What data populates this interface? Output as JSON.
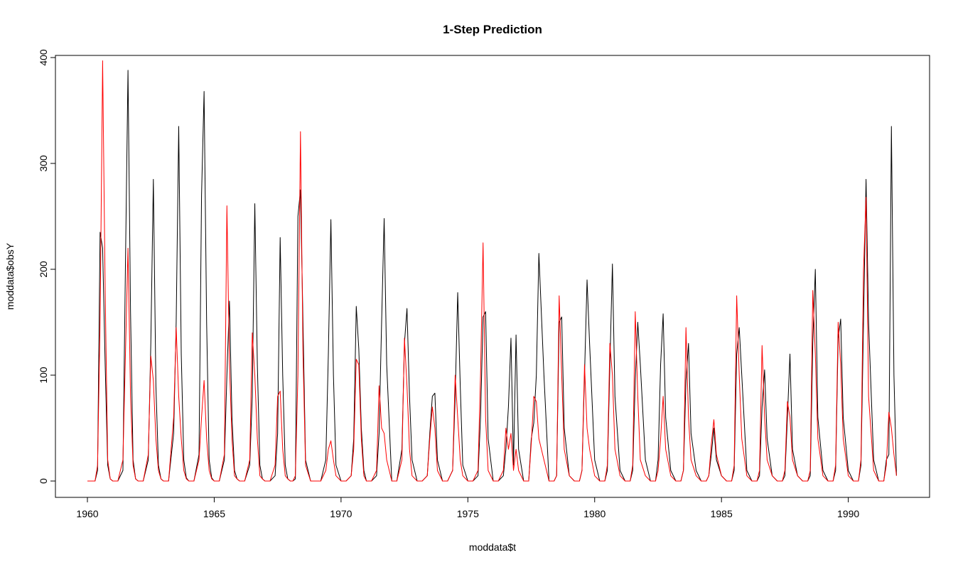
{
  "chart_data": {
    "type": "line",
    "title": "1-Step Prediction",
    "xlabel": "moddata$t",
    "ylabel": "moddata$obsY",
    "xlim": [
      1960,
      1992
    ],
    "ylim": [
      0,
      400
    ],
    "x_ticks": [
      1960,
      1965,
      1970,
      1975,
      1980,
      1985,
      1990
    ],
    "x_tick_labels": [
      "1960",
      "1965",
      "1970",
      "1975",
      "1980",
      "1985",
      "1990"
    ],
    "y_ticks": [
      0,
      100,
      200,
      300,
      400
    ],
    "y_tick_labels": [
      "0",
      "100",
      "200",
      "300",
      "400"
    ],
    "grid": false,
    "legend": "none",
    "colors": {
      "observed": "#000000",
      "predicted": "#ff0000"
    },
    "series": [
      {
        "x": [
          1960.0,
          1960.2,
          1960.3,
          1960.4,
          1960.5,
          1960.6,
          1960.7,
          1960.8,
          1960.9,
          1961.0,
          1961.2,
          1961.4,
          1961.5,
          1961.6,
          1961.7,
          1961.8,
          1961.9,
          1962.0,
          1962.2,
          1962.4,
          1962.5,
          1962.6,
          1962.7,
          1962.8,
          1962.9,
          1963.0,
          1963.2,
          1963.4,
          1963.5,
          1963.6,
          1963.7,
          1963.8,
          1963.9,
          1964.0,
          1964.2,
          1964.4,
          1964.5,
          1964.6,
          1964.7,
          1964.8,
          1964.9,
          1965.0,
          1965.2,
          1965.4,
          1965.5,
          1965.6,
          1965.7,
          1965.8,
          1965.9,
          1966.0,
          1966.2,
          1966.4,
          1966.5,
          1966.6,
          1966.7,
          1966.8,
          1966.9,
          1967.0,
          1967.2,
          1967.4,
          1967.5,
          1967.6,
          1967.7,
          1967.8,
          1967.9,
          1968.0,
          1968.1,
          1968.2,
          1968.3,
          1968.4,
          1968.5,
          1968.6,
          1968.8,
          1969.0,
          1969.2,
          1969.4,
          1969.5,
          1969.6,
          1969.7,
          1969.8,
          1970.0,
          1970.2,
          1970.4,
          1970.5,
          1970.6,
          1970.7,
          1970.8,
          1970.9,
          1971.0,
          1971.2,
          1971.4,
          1971.5,
          1971.6,
          1971.7,
          1971.8,
          1972.0,
          1972.2,
          1972.4,
          1972.5,
          1972.6,
          1972.7,
          1972.8,
          1973.0,
          1973.2,
          1973.4,
          1973.5,
          1973.6,
          1973.7,
          1973.8,
          1974.0,
          1974.2,
          1974.4,
          1974.5,
          1974.6,
          1974.7,
          1974.8,
          1975.0,
          1975.2,
          1975.4,
          1975.5,
          1975.6,
          1975.7,
          1975.8,
          1976.0,
          1976.2,
          1976.4,
          1976.5,
          1976.6,
          1976.7,
          1976.8,
          1976.9,
          1977.0,
          1977.2,
          1977.4,
          1977.5,
          1977.6,
          1977.7,
          1977.8,
          1978.0,
          1978.2,
          1978.4,
          1978.5,
          1978.6,
          1978.7,
          1978.8,
          1979.0,
          1979.2,
          1979.4,
          1979.5,
          1979.6,
          1979.7,
          1979.8,
          1980.0,
          1980.2,
          1980.4,
          1980.5,
          1980.6,
          1980.7,
          1980.8,
          1981.0,
          1981.2,
          1981.4,
          1981.5,
          1981.6,
          1981.7,
          1981.8,
          1982.0,
          1982.2,
          1982.4,
          1982.5,
          1982.6,
          1982.7,
          1982.8,
          1983.0,
          1983.2,
          1983.4,
          1983.5,
          1983.6,
          1983.7,
          1983.8,
          1984.0,
          1984.2,
          1984.4,
          1984.5,
          1984.6,
          1984.7,
          1984.8,
          1985.0,
          1985.2,
          1985.4,
          1985.5,
          1985.6,
          1985.7,
          1985.8,
          1986.0,
          1986.2,
          1986.4,
          1986.5,
          1986.6,
          1986.7,
          1986.8,
          1987.0,
          1987.2,
          1987.4,
          1987.5,
          1987.6,
          1987.7,
          1987.8,
          1988.0,
          1988.2,
          1988.4,
          1988.5,
          1988.6,
          1988.7,
          1988.8,
          1989.0,
          1989.2,
          1989.4,
          1989.5,
          1989.6,
          1989.7,
          1989.8,
          1990.0,
          1990.2,
          1990.4,
          1990.5,
          1990.6,
          1990.7,
          1990.8,
          1991.0,
          1991.2,
          1991.4,
          1991.5,
          1991.6,
          1991.7,
          1991.8,
          1991.9
        ],
        "y": [
          0,
          0,
          0,
          10,
          235,
          220,
          110,
          15,
          2,
          0,
          0,
          10,
          205,
          388,
          160,
          20,
          2,
          0,
          0,
          20,
          130,
          285,
          90,
          15,
          2,
          0,
          0,
          45,
          150,
          335,
          120,
          20,
          3,
          0,
          0,
          25,
          270,
          368,
          150,
          20,
          3,
          0,
          0,
          20,
          100,
          170,
          60,
          10,
          2,
          0,
          0,
          15,
          80,
          262,
          110,
          15,
          2,
          0,
          0,
          5,
          45,
          230,
          100,
          15,
          2,
          0,
          0,
          2,
          250,
          275,
          150,
          20,
          0,
          0,
          0,
          20,
          120,
          247,
          100,
          15,
          0,
          0,
          5,
          40,
          165,
          125,
          50,
          10,
          0,
          0,
          5,
          45,
          150,
          248,
          110,
          0,
          0,
          30,
          130,
          163,
          80,
          20,
          0,
          0,
          5,
          45,
          80,
          83,
          20,
          0,
          0,
          10,
          80,
          178,
          90,
          15,
          0,
          0,
          5,
          60,
          155,
          160,
          40,
          0,
          0,
          5,
          30,
          70,
          135,
          15,
          138,
          30,
          0,
          0,
          40,
          55,
          100,
          215,
          100,
          0,
          0,
          5,
          150,
          155,
          50,
          5,
          0,
          0,
          10,
          100,
          190,
          130,
          20,
          0,
          0,
          10,
          110,
          205,
          80,
          10,
          0,
          0,
          10,
          95,
          150,
          110,
          20,
          0,
          0,
          20,
          110,
          158,
          60,
          10,
          0,
          0,
          10,
          95,
          130,
          45,
          10,
          0,
          0,
          5,
          25,
          50,
          20,
          5,
          0,
          0,
          10,
          120,
          145,
          100,
          10,
          0,
          0,
          5,
          70,
          105,
          40,
          5,
          0,
          0,
          5,
          60,
          120,
          30,
          5,
          0,
          0,
          5,
          130,
          200,
          60,
          10,
          0,
          0,
          10,
          135,
          153,
          60,
          10,
          0,
          0,
          15,
          150,
          285,
          150,
          20,
          0,
          0,
          20,
          25,
          335,
          100,
          5
        ]
      },
      {
        "x": [
          1960.0,
          1960.2,
          1960.3,
          1960.4,
          1960.5,
          1960.6,
          1960.7,
          1960.8,
          1960.9,
          1961.0,
          1961.2,
          1961.4,
          1961.5,
          1961.6,
          1961.7,
          1961.8,
          1961.9,
          1962.0,
          1962.2,
          1962.4,
          1962.5,
          1962.6,
          1962.7,
          1962.8,
          1962.9,
          1963.0,
          1963.2,
          1963.4,
          1963.5,
          1963.6,
          1963.7,
          1963.8,
          1963.9,
          1964.0,
          1964.2,
          1964.4,
          1964.5,
          1964.6,
          1964.7,
          1964.8,
          1964.9,
          1965.0,
          1965.2,
          1965.4,
          1965.5,
          1965.6,
          1965.7,
          1965.8,
          1965.9,
          1966.0,
          1966.2,
          1966.4,
          1966.5,
          1966.6,
          1966.7,
          1966.8,
          1966.9,
          1967.0,
          1967.2,
          1967.4,
          1967.5,
          1967.6,
          1967.7,
          1967.8,
          1967.9,
          1968.0,
          1968.1,
          1968.2,
          1968.3,
          1968.4,
          1968.5,
          1968.6,
          1968.8,
          1969.0,
          1969.2,
          1969.4,
          1969.5,
          1969.6,
          1969.7,
          1969.8,
          1970.0,
          1970.2,
          1970.4,
          1970.5,
          1970.6,
          1970.7,
          1970.8,
          1970.9,
          1971.0,
          1971.2,
          1971.4,
          1971.5,
          1971.6,
          1971.7,
          1971.8,
          1972.0,
          1972.2,
          1972.4,
          1972.5,
          1972.6,
          1972.7,
          1972.8,
          1973.0,
          1973.2,
          1973.4,
          1973.5,
          1973.6,
          1973.7,
          1973.8,
          1974.0,
          1974.2,
          1974.4,
          1974.5,
          1974.6,
          1974.7,
          1974.8,
          1975.0,
          1975.2,
          1975.4,
          1975.5,
          1975.6,
          1975.7,
          1975.8,
          1976.0,
          1976.2,
          1976.4,
          1976.5,
          1976.6,
          1976.7,
          1976.8,
          1976.9,
          1977.0,
          1977.2,
          1977.4,
          1977.5,
          1977.6,
          1977.7,
          1977.8,
          1978.0,
          1978.2,
          1978.4,
          1978.5,
          1978.6,
          1978.7,
          1978.8,
          1979.0,
          1979.2,
          1979.4,
          1979.5,
          1979.6,
          1979.7,
          1979.8,
          1980.0,
          1980.2,
          1980.4,
          1980.5,
          1980.6,
          1980.7,
          1980.8,
          1981.0,
          1981.2,
          1981.4,
          1981.5,
          1981.6,
          1981.7,
          1981.8,
          1982.0,
          1982.2,
          1982.4,
          1982.5,
          1982.6,
          1982.7,
          1982.8,
          1983.0,
          1983.2,
          1983.4,
          1983.5,
          1983.6,
          1983.7,
          1983.8,
          1984.0,
          1984.2,
          1984.4,
          1984.5,
          1984.6,
          1984.7,
          1984.8,
          1985.0,
          1985.2,
          1985.4,
          1985.5,
          1985.6,
          1985.7,
          1985.8,
          1986.0,
          1986.2,
          1986.4,
          1986.5,
          1986.6,
          1986.7,
          1986.8,
          1987.0,
          1987.2,
          1987.4,
          1987.5,
          1987.6,
          1987.7,
          1987.8,
          1988.0,
          1988.2,
          1988.4,
          1988.5,
          1988.6,
          1988.7,
          1988.8,
          1989.0,
          1989.2,
          1989.4,
          1989.5,
          1989.6,
          1989.7,
          1989.8,
          1990.0,
          1990.2,
          1990.4,
          1990.5,
          1990.6,
          1990.7,
          1990.8,
          1991.0,
          1991.2,
          1991.4,
          1991.5,
          1991.6,
          1991.7,
          1991.8,
          1991.9
        ],
        "y": [
          0,
          0,
          0,
          15,
          150,
          397,
          180,
          20,
          2,
          0,
          0,
          20,
          120,
          220,
          80,
          15,
          2,
          0,
          0,
          25,
          118,
          95,
          40,
          10,
          2,
          0,
          0,
          60,
          145,
          80,
          40,
          10,
          2,
          0,
          0,
          20,
          60,
          95,
          40,
          10,
          2,
          0,
          0,
          25,
          260,
          110,
          40,
          5,
          2,
          0,
          0,
          20,
          140,
          100,
          40,
          5,
          2,
          0,
          0,
          15,
          80,
          85,
          30,
          5,
          2,
          0,
          0,
          5,
          100,
          330,
          120,
          15,
          0,
          0,
          0,
          10,
          30,
          38,
          20,
          5,
          0,
          0,
          5,
          30,
          115,
          110,
          40,
          5,
          0,
          0,
          10,
          90,
          50,
          45,
          20,
          0,
          0,
          20,
          135,
          90,
          30,
          5,
          0,
          0,
          5,
          40,
          70,
          50,
          10,
          0,
          0,
          10,
          100,
          60,
          20,
          5,
          0,
          0,
          10,
          100,
          225,
          60,
          10,
          0,
          0,
          10,
          50,
          30,
          45,
          10,
          30,
          10,
          0,
          0,
          35,
          80,
          75,
          40,
          20,
          0,
          0,
          5,
          175,
          100,
          30,
          5,
          0,
          0,
          10,
          110,
          50,
          30,
          5,
          0,
          0,
          15,
          130,
          100,
          30,
          5,
          0,
          0,
          15,
          160,
          80,
          20,
          5,
          0,
          0,
          10,
          40,
          80,
          30,
          5,
          0,
          0,
          10,
          145,
          60,
          20,
          5,
          0,
          0,
          5,
          35,
          58,
          25,
          5,
          0,
          0,
          15,
          175,
          100,
          40,
          5,
          0,
          0,
          10,
          128,
          60,
          20,
          5,
          0,
          0,
          10,
          75,
          60,
          20,
          5,
          0,
          0,
          10,
          180,
          120,
          40,
          5,
          0,
          0,
          15,
          150,
          110,
          40,
          5,
          0,
          0,
          20,
          200,
          268,
          80,
          10,
          0,
          0,
          15,
          65,
          50,
          25,
          5
        ]
      }
    ]
  }
}
